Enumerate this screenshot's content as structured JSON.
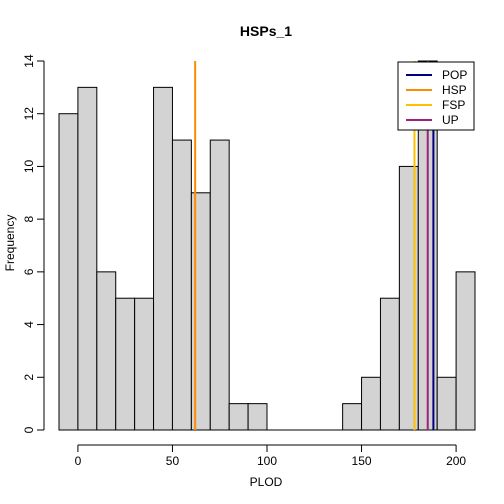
{
  "chart_data": {
    "type": "bar",
    "title": "HSPs_1",
    "xlabel": "PLOD",
    "ylabel": "Frequency",
    "bin_width": 10,
    "bins": [
      {
        "start": -10,
        "end": 0,
        "count": 12
      },
      {
        "start": 0,
        "end": 10,
        "count": 13
      },
      {
        "start": 10,
        "end": 20,
        "count": 6
      },
      {
        "start": 20,
        "end": 30,
        "count": 5
      },
      {
        "start": 30,
        "end": 40,
        "count": 5
      },
      {
        "start": 40,
        "end": 50,
        "count": 13
      },
      {
        "start": 50,
        "end": 60,
        "count": 11
      },
      {
        "start": 60,
        "end": 70,
        "count": 9
      },
      {
        "start": 70,
        "end": 80,
        "count": 11
      },
      {
        "start": 80,
        "end": 90,
        "count": 1
      },
      {
        "start": 90,
        "end": 100,
        "count": 1
      },
      {
        "start": 100,
        "end": 110,
        "count": 0
      },
      {
        "start": 110,
        "end": 120,
        "count": 0
      },
      {
        "start": 120,
        "end": 130,
        "count": 0
      },
      {
        "start": 130,
        "end": 140,
        "count": 0
      },
      {
        "start": 140,
        "end": 150,
        "count": 1
      },
      {
        "start": 150,
        "end": 160,
        "count": 2
      },
      {
        "start": 160,
        "end": 170,
        "count": 5
      },
      {
        "start": 170,
        "end": 180,
        "count": 10
      },
      {
        "start": 180,
        "end": 190,
        "count": 14
      },
      {
        "start": 190,
        "end": 200,
        "count": 2
      },
      {
        "start": 200,
        "end": 210,
        "count": 6
      }
    ],
    "xlim": [
      -10,
      210
    ],
    "ylim": [
      0,
      14
    ],
    "x_ticks": [
      0,
      50,
      100,
      150,
      200
    ],
    "y_ticks": [
      0,
      2,
      4,
      6,
      8,
      10,
      12,
      14
    ],
    "bar_color": "#d3d3d3",
    "reference_lines": [
      {
        "name": "POP",
        "x": 188,
        "color": "#000080"
      },
      {
        "name": "HSP",
        "x": 62,
        "color": "#ff8c00"
      },
      {
        "name": "FSP",
        "x": 178,
        "color": "#ffc000"
      },
      {
        "name": "UP",
        "x": 185,
        "color": "#a02080"
      }
    ],
    "legend": {
      "position": "top-right",
      "entries": [
        {
          "label": "POP",
          "color": "#000080"
        },
        {
          "label": "HSP",
          "color": "#ff8c00"
        },
        {
          "label": "FSP",
          "color": "#ffc000"
        },
        {
          "label": "UP",
          "color": "#a02080"
        }
      ]
    },
    "grid": false
  }
}
